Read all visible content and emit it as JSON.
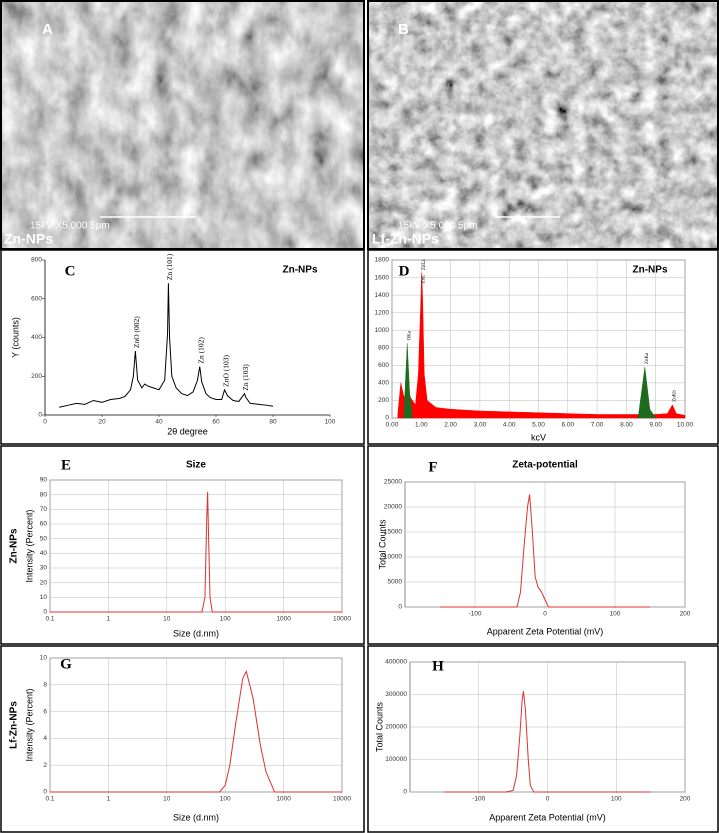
{
  "images": [
    {
      "label": "A",
      "sample": "Zn-NPs",
      "scale_bar": "15kV  X5,000  5μm"
    },
    {
      "label": "B",
      "sample": "Lf-Zn-NPs",
      "scale_bar": "15kV  X5,000  5μm"
    }
  ],
  "chart_data": [
    {
      "type": "line",
      "panel_label": "C",
      "title": "Zn-NPs",
      "x_label": "2θ degree",
      "y_label": "Y (counts)",
      "xlim": [
        0,
        100
      ],
      "xticks": [
        0,
        20,
        40,
        60,
        80,
        100
      ],
      "ylim": [
        0,
        800
      ],
      "yticks": [
        0,
        200,
        400,
        600,
        800
      ],
      "grid": false,
      "log_x": false,
      "area": false,
      "x": [
        5,
        8,
        11,
        14,
        17,
        20,
        23,
        26,
        28,
        30,
        31,
        31.7,
        32.5,
        34,
        35,
        36,
        38,
        40,
        42,
        43,
        43.3,
        43.7,
        44.5,
        46,
        48,
        50,
        52,
        53.5,
        54.3,
        55,
        56.5,
        58,
        60,
        62,
        63,
        64,
        66,
        68,
        70,
        70.5,
        72,
        75,
        78,
        80
      ],
      "series": [
        {
          "color": "#000000",
          "values": [
            40,
            50,
            60,
            55,
            75,
            65,
            80,
            85,
            95,
            130,
            200,
            330,
            180,
            140,
            160,
            150,
            140,
            130,
            180,
            420,
            680,
            400,
            200,
            140,
            110,
            100,
            120,
            180,
            250,
            170,
            110,
            90,
            80,
            80,
            130,
            100,
            75,
            70,
            110,
            90,
            60,
            55,
            50,
            45
          ]
        }
      ],
      "peak_labels": [
        {
          "label": "ZnO (002)",
          "x": 31.7
        },
        {
          "label": "Zn (101)",
          "x": 43.3
        },
        {
          "label": "Zn (102)",
          "x": 54.3
        },
        {
          "label": "ZnO (103)",
          "x": 63
        },
        {
          "label": "Zn (103)",
          "x": 70
        }
      ]
    },
    {
      "type": "area",
      "panel_label": "D",
      "title": "Zn-NPs",
      "x_label": "kcV",
      "y_label": null,
      "xlim": [
        0,
        10
      ],
      "xticks": [
        {
          "value": 0,
          "label": "0.00"
        },
        {
          "value": 1,
          "label": "1.00"
        },
        {
          "value": 2,
          "label": "2.00"
        },
        {
          "value": 3,
          "label": "3.00"
        },
        {
          "value": 4,
          "label": "4.00"
        },
        {
          "value": 5,
          "label": "5.00"
        },
        {
          "value": 6,
          "label": "6.00"
        },
        {
          "value": 7,
          "label": "7.00"
        },
        {
          "value": 8,
          "label": "8.00"
        },
        {
          "value": 9,
          "label": "9.00"
        },
        {
          "value": 10,
          "label": "10.00"
        }
      ],
      "ylim": [
        0,
        1800
      ],
      "yticks": [
        0,
        200,
        400,
        600,
        800,
        1000,
        1200,
        1400,
        1600,
        1800
      ],
      "grid": true,
      "log_x": false,
      "area": true,
      "x": [
        0.2,
        0.3,
        0.4,
        0.5,
        0.52,
        0.6,
        0.7,
        0.8,
        0.9,
        0.95,
        1.0,
        1.02,
        1.05,
        1.1,
        1.2,
        1.5,
        2,
        3,
        4,
        5,
        6,
        7,
        8,
        8.4,
        8.63,
        8.8,
        9,
        9.4,
        9.57,
        9.7,
        10
      ],
      "series": [
        {
          "color": "#ff0000",
          "values": [
            50,
            400,
            250,
            200,
            300,
            250,
            200,
            150,
            500,
            1000,
            1500,
            1650,
            1300,
            500,
            200,
            120,
            100,
            80,
            70,
            60,
            50,
            40,
            40,
            40,
            40,
            40,
            40,
            50,
            150,
            50,
            30
          ]
        },
        {
          "color": "#1e6b1e",
          "values": [
            null,
            null,
            0,
            700,
            850,
            300,
            0,
            null,
            null,
            null,
            null,
            null,
            null,
            null,
            null,
            null,
            null,
            null,
            null,
            null,
            null,
            null,
            null,
            0,
            580,
            100,
            0,
            null,
            null,
            null,
            null
          ]
        }
      ],
      "peak_labels": [
        {
          "label": "OKa",
          "x": 0.52
        },
        {
          "label": "ZnL",
          "x": 1.0
        },
        {
          "label": "ZnLa",
          "x": 1.02
        },
        {
          "label": "ZnKa",
          "x": 8.63
        },
        {
          "label": "ZnKb",
          "x": 9.57
        }
      ]
    },
    {
      "type": "line",
      "panel_label": "E",
      "title": "Size",
      "row_label": "Zn-NPs",
      "x_label": "Size (d.nm)",
      "y_label": "Intensity (Percent)",
      "xlim": [
        0.1,
        10000
      ],
      "xticks": [
        0.1,
        1,
        10,
        100,
        1000,
        10000
      ],
      "ylim": [
        0,
        90
      ],
      "yticks": [
        0,
        10,
        20,
        30,
        40,
        50,
        60,
        70,
        80,
        90
      ],
      "grid": true,
      "log_x": true,
      "area": false,
      "x": [
        0.1,
        1,
        10,
        40,
        45,
        48,
        50,
        52,
        55,
        60,
        100,
        1000,
        10000
      ],
      "series": [
        {
          "color": "#e03030",
          "values": [
            0,
            0,
            0,
            0,
            10,
            60,
            82,
            50,
            10,
            0,
            0,
            0,
            0
          ]
        }
      ]
    },
    {
      "type": "line",
      "panel_label": "F",
      "title": "Zeta-potential",
      "x_label": "Apparent Zeta Potential (mV)",
      "y_label": "Total Counts",
      "xlim": [
        -200,
        200
      ],
      "xticks": [
        -100,
        0,
        100,
        200
      ],
      "ylim": [
        0,
        25000
      ],
      "yticks": [
        0,
        5000,
        10000,
        15000,
        20000,
        25000
      ],
      "grid": true,
      "log_x": false,
      "area": false,
      "x": [
        -150,
        -100,
        -60,
        -40,
        -35,
        -30,
        -25,
        -22,
        -18,
        -14,
        -10,
        -5,
        0,
        5,
        150
      ],
      "series": [
        {
          "color": "#e03030",
          "values": [
            0,
            0,
            0,
            0,
            3000,
            12000,
            20000,
            22500,
            15000,
            6000,
            4000,
            3000,
            1500,
            0,
            0
          ]
        }
      ]
    },
    {
      "type": "line",
      "panel_label": "G",
      "row_label": "Lf-Zn-NPs",
      "x_label": "Size (d.nm)",
      "y_label": "Intensity (Percent)",
      "xlim": [
        0.1,
        10000
      ],
      "xticks": [
        0.1,
        1,
        10,
        100,
        1000,
        10000
      ],
      "ylim": [
        0,
        10
      ],
      "yticks": [
        0,
        2,
        4,
        6,
        8,
        10
      ],
      "grid": true,
      "log_x": true,
      "area": false,
      "x": [
        0.1,
        1,
        10,
        80,
        100,
        120,
        150,
        200,
        230,
        300,
        400,
        500,
        700,
        10000
      ],
      "series": [
        {
          "color": "#e03030",
          "values": [
            0,
            0,
            0,
            0,
            0.5,
            2,
            5,
            8.5,
            9,
            7,
            3.5,
            1.5,
            0,
            0
          ]
        }
      ]
    },
    {
      "type": "line",
      "panel_label": "H",
      "x_label": "Apparent Zeta Potential (mV)",
      "y_label": "Total Counts",
      "xlim": [
        -200,
        200
      ],
      "xticks": [
        -100,
        0,
        100,
        200
      ],
      "ylim": [
        0,
        400000
      ],
      "yticks": [
        0,
        100000,
        200000,
        300000,
        400000
      ],
      "grid": true,
      "log_x": false,
      "area": false,
      "x": [
        -150,
        -60,
        -50,
        -45,
        -40,
        -37,
        -35,
        -32,
        -28,
        -25,
        -20,
        150
      ],
      "series": [
        {
          "color": "#e03030",
          "values": [
            0,
            0,
            5000,
            50000,
            180000,
            280000,
            310000,
            250000,
            100000,
            20000,
            0,
            0
          ]
        }
      ]
    }
  ]
}
